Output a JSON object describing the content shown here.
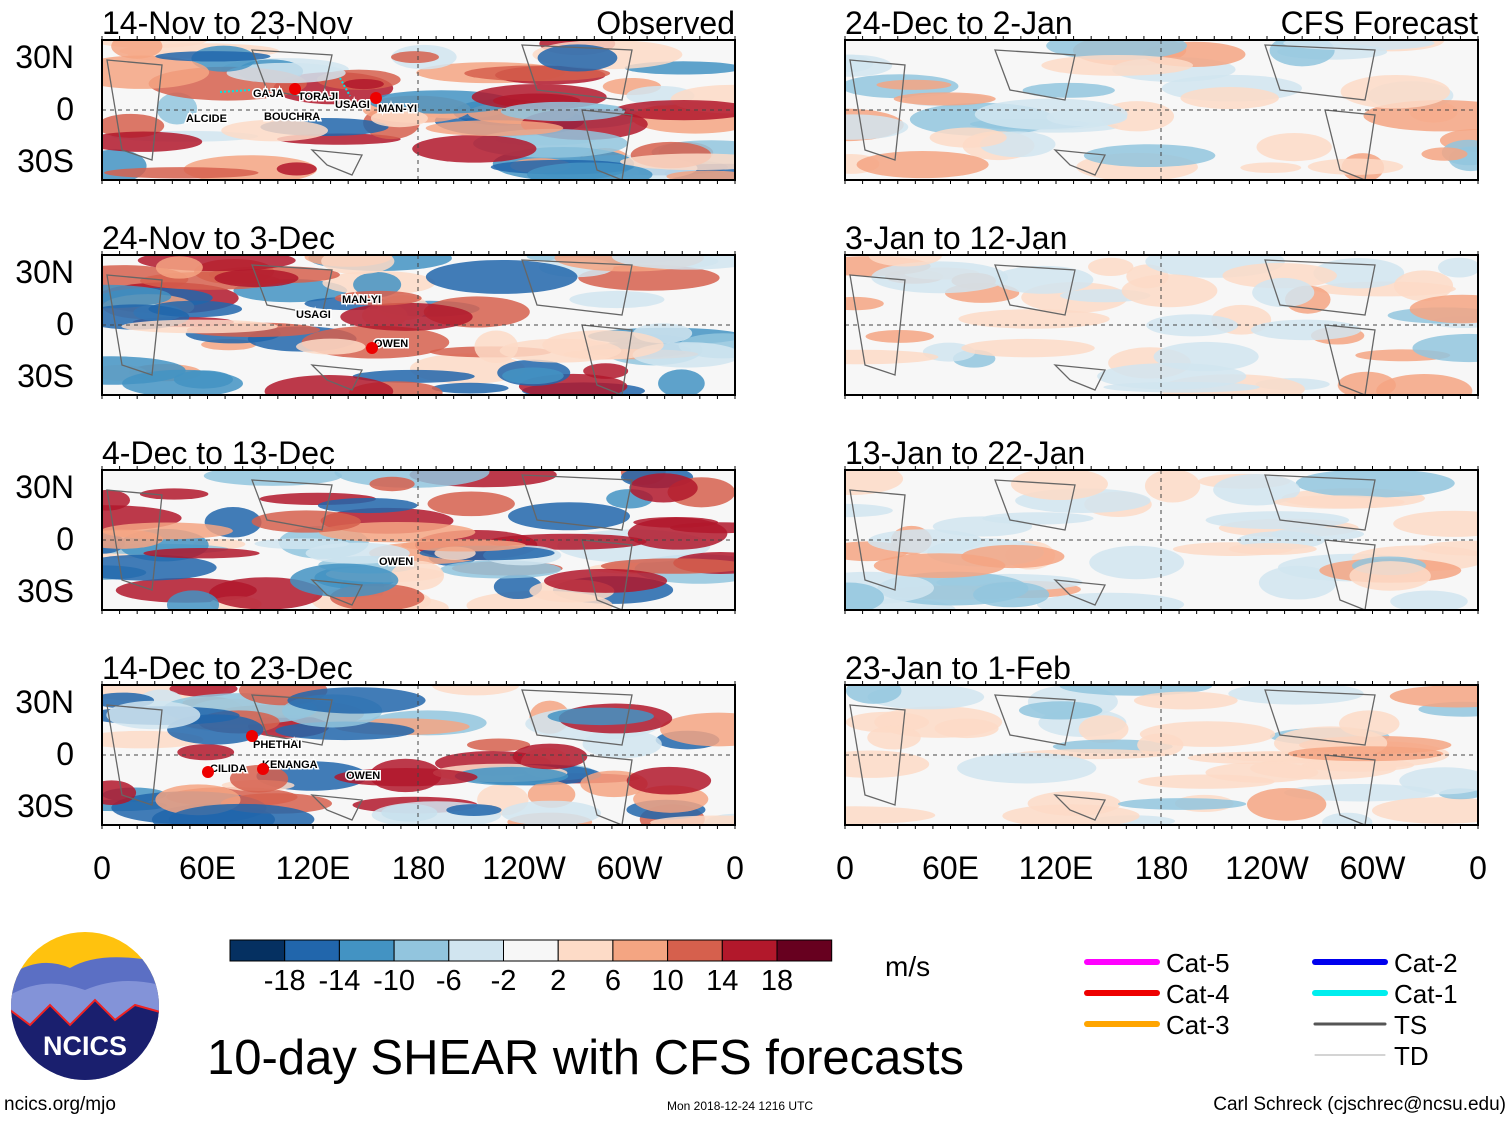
{
  "panels": [
    {
      "title": "14-Nov to 23-Nov",
      "tag": "Observed",
      "storms": [
        "GAJA",
        "TORAJI",
        "USAGI",
        "MAN-YI",
        "ALCIDE",
        "BOUCHRA"
      ]
    },
    {
      "title": "24-Nov to 3-Dec",
      "storms": [
        "MAN-YI",
        "USAGI",
        "OWEN"
      ]
    },
    {
      "title": "4-Dec to 13-Dec",
      "storms": [
        "OWEN"
      ]
    },
    {
      "title": "14-Dec to 23-Dec",
      "storms": [
        "PHETHAI",
        "CILIDA",
        "KENANGA",
        "OWEN"
      ]
    },
    {
      "title": "24-Dec to 2-Jan",
      "tag": "CFS Forecast"
    },
    {
      "title": "3-Jan to 12-Jan"
    },
    {
      "title": "13-Jan to 22-Jan"
    },
    {
      "title": "23-Jan to 1-Feb"
    }
  ],
  "lat_labels": [
    "30N",
    "0",
    "30S"
  ],
  "lon_labels": [
    "0",
    "60E",
    "120E",
    "180",
    "120W",
    "60W",
    "0"
  ],
  "colorbar": {
    "colors": [
      "#053061",
      "#2166ac",
      "#4393c3",
      "#92c5de",
      "#d1e5f0",
      "#f7f7f7",
      "#fddbc7",
      "#f4a582",
      "#d6604d",
      "#b2182b",
      "#67001f"
    ],
    "ticks": [
      "-18",
      "-14",
      "-10",
      "-6",
      "-2",
      "2",
      "6",
      "10",
      "14",
      "18"
    ],
    "units": "m/s"
  },
  "legend": [
    {
      "label": "Cat-5",
      "color": "#ff00ff"
    },
    {
      "label": "Cat-4",
      "color": "#ee0000"
    },
    {
      "label": "Cat-3",
      "color": "#ffa500"
    },
    {
      "label": "Cat-2",
      "color": "#0000ee"
    },
    {
      "label": "Cat-1",
      "color": "#00eeee"
    },
    {
      "label": "TS",
      "color": "#555555"
    },
    {
      "label": "TD",
      "color": "#aaaaaa"
    }
  ],
  "title": "10-day SHEAR with CFS forecasts",
  "logo": "NCICS",
  "footer": {
    "left": "ncics.org/mjo",
    "center": "Mon 2018-12-24 1216 UTC",
    "right": "Carl Schreck (cjschrec@ncsu.edu)"
  }
}
